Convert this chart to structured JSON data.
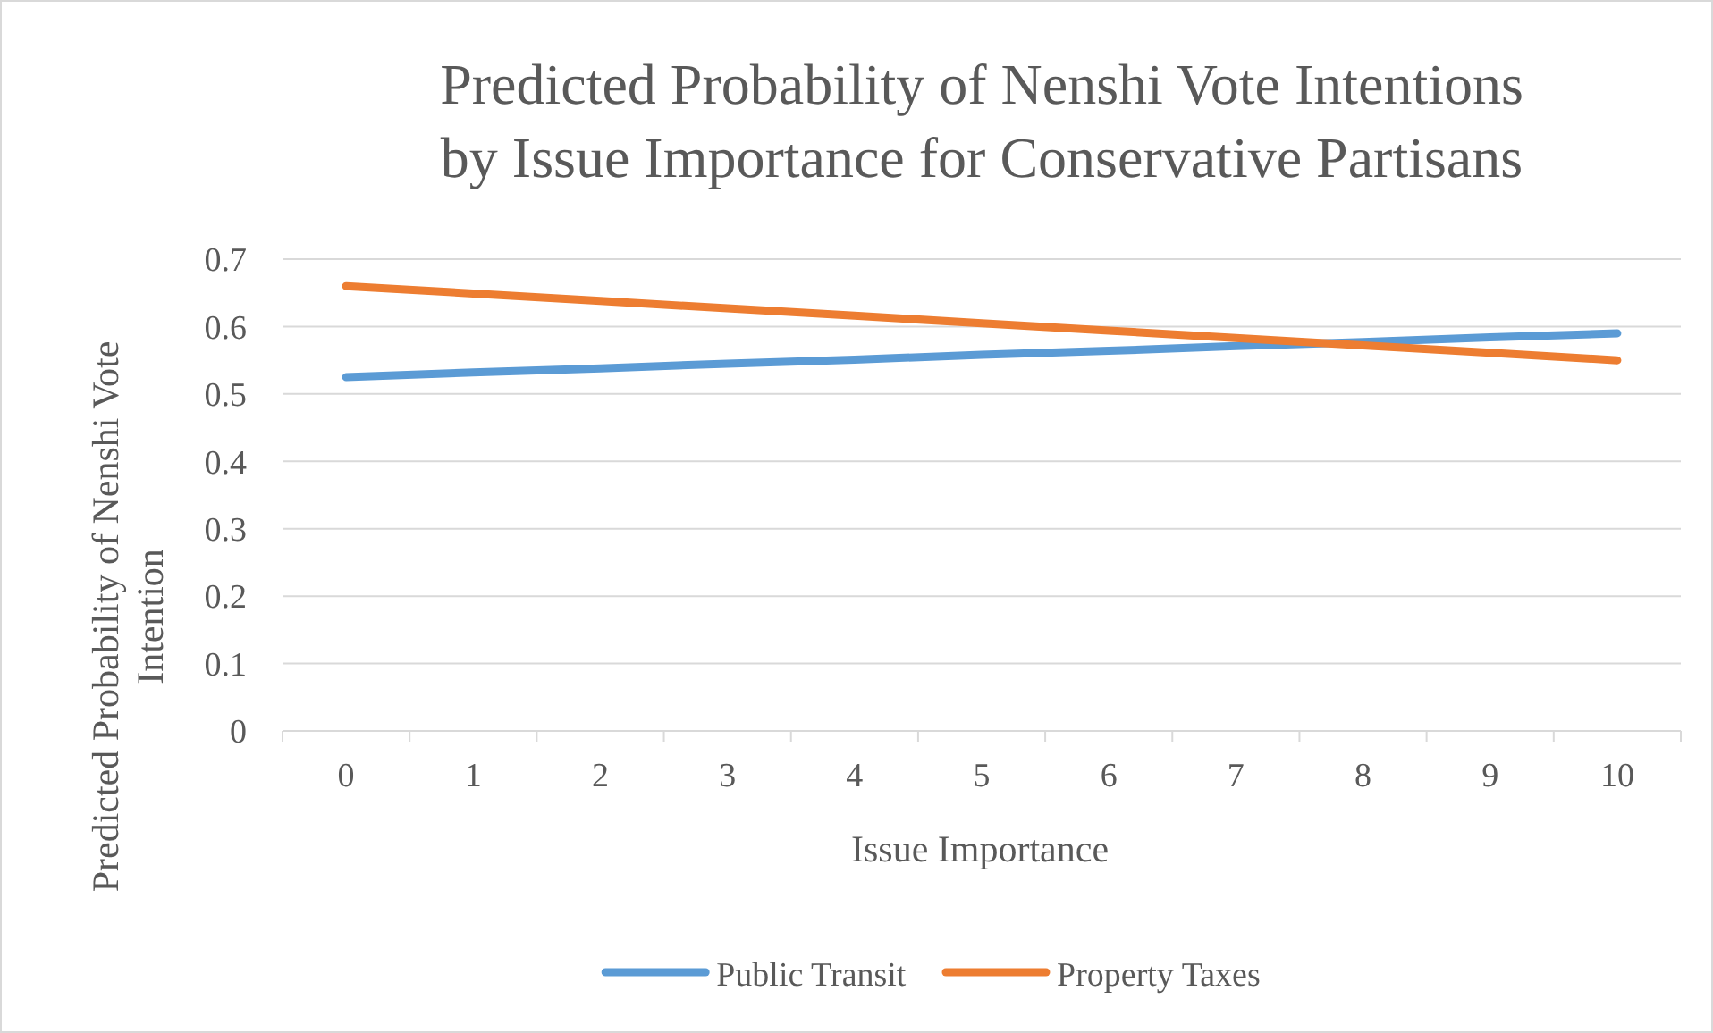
{
  "chart_data": {
    "type": "line",
    "title": "Predicted Probability of Nenshi Vote Intentions by Issue Importance for Conservative Partisans",
    "xlabel": "Issue Importance",
    "ylabel": "Predicted Probability of Nenshi Vote Intention",
    "categories": [
      "0",
      "1",
      "2",
      "3",
      "4",
      "5",
      "6",
      "7",
      "8",
      "9",
      "10"
    ],
    "series": [
      {
        "name": "Public Transit",
        "color": "#5b9bd5",
        "values": [
          0.525,
          0.532,
          0.538,
          0.545,
          0.551,
          0.558,
          0.564,
          0.571,
          0.577,
          0.584,
          0.59
        ]
      },
      {
        "name": "Property Taxes",
        "color": "#ed7d31",
        "values": [
          0.66,
          0.649,
          0.638,
          0.627,
          0.616,
          0.605,
          0.594,
          0.583,
          0.572,
          0.561,
          0.55
        ]
      }
    ],
    "ylim": [
      0,
      0.7
    ],
    "yticks": [
      0,
      0.1,
      0.2,
      0.3,
      0.4,
      0.5,
      0.6,
      0.7
    ],
    "grid": "y",
    "legend": "bottom",
    "marker": "none",
    "line_style": "solid"
  }
}
